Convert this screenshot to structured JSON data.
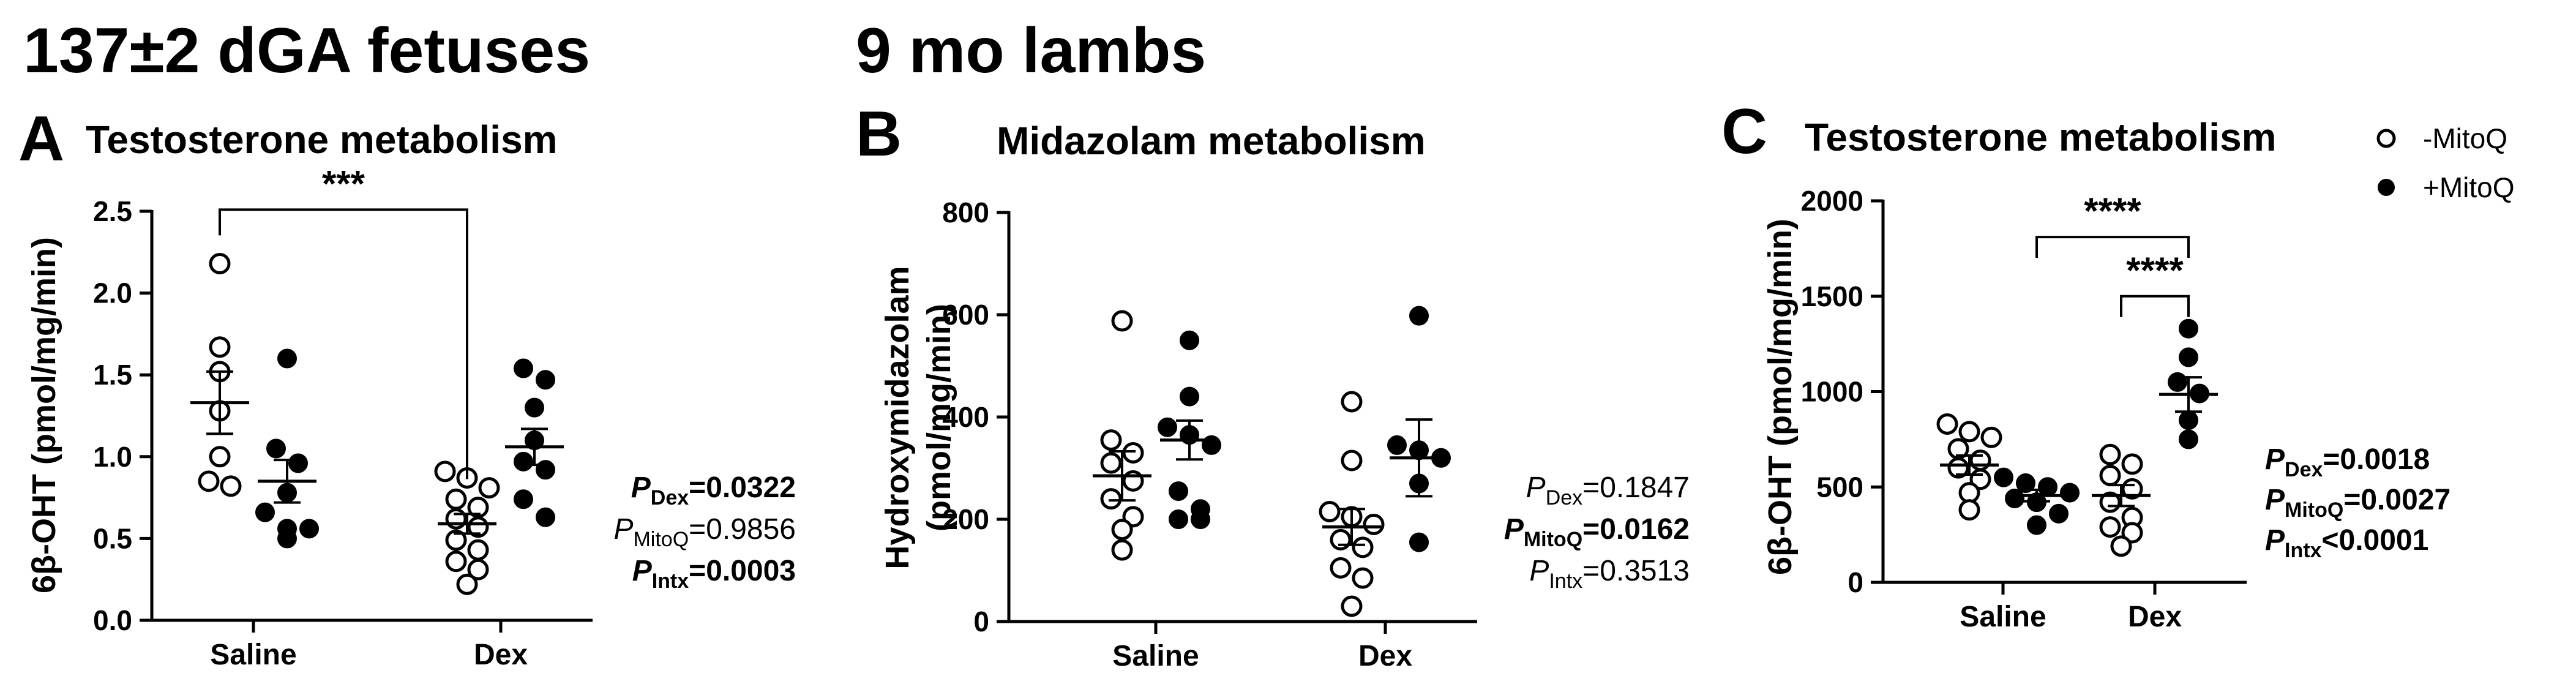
{
  "headers": {
    "fetal": "137±2 dGA fetuses",
    "lambs": "9 mo lambs"
  },
  "legend": {
    "open_label": "-MitoQ",
    "filled_label": "+MitoQ"
  },
  "chart_data": [
    {
      "type": "scatter",
      "panel": "A",
      "title": "Testosterone metabolism",
      "ylabel": "6β-OHT (pmol/mg/min)",
      "ylim": [
        0,
        2.5
      ],
      "yticks": [
        "0.0",
        "0.5",
        "1.0",
        "1.5",
        "2.0",
        "2.5"
      ],
      "ytick_values": [
        0,
        0.5,
        1.0,
        1.5,
        2.0,
        2.5
      ],
      "categories": [
        "Saline",
        "Dex"
      ],
      "series": [
        {
          "name": "-MitoQ",
          "category": "Saline",
          "values": [
            2.18,
            1.67,
            1.52,
            1.28,
            1.0,
            0.85,
            0.82
          ],
          "mean": 1.33,
          "sem": 0.19
        },
        {
          "name": "+MitoQ",
          "category": "Saline",
          "values": [
            1.6,
            1.05,
            0.96,
            0.78,
            0.66,
            0.56,
            0.56,
            0.5
          ],
          "mean": 0.85,
          "sem": 0.13
        },
        {
          "name": "-MitoQ",
          "category": "Dex",
          "values": [
            0.91,
            0.87,
            0.81,
            0.74,
            0.69,
            0.62,
            0.57,
            0.49,
            0.43,
            0.36,
            0.31,
            0.22
          ],
          "mean": 0.59,
          "sem": 0.06
        },
        {
          "name": "+MitoQ",
          "category": "Dex",
          "values": [
            1.54,
            1.47,
            1.3,
            1.1,
            0.97,
            0.92,
            0.74,
            0.63
          ],
          "mean": 1.06,
          "sem": 0.11
        }
      ],
      "brackets": [
        {
          "label": "***",
          "value": 2.51
        }
      ],
      "stats": [
        {
          "p": "P",
          "sub": "Dex",
          "val": "=0.0322",
          "bold": true
        },
        {
          "p": "P",
          "sub": "MitoQ",
          "val": "=0.9856",
          "bold": false
        },
        {
          "p": "P",
          "sub": "Intx",
          "val": "=0.0003",
          "bold": true
        }
      ]
    },
    {
      "type": "scatter",
      "panel": "B",
      "title": "Midazolam metabolism",
      "ylabel_lines": [
        "Hydroxymidazolam",
        "(pmol/mg/min)"
      ],
      "ylim": [
        0,
        800
      ],
      "yticks": [
        "0",
        "200",
        "400",
        "600",
        "800"
      ],
      "ytick_values": [
        0,
        200,
        400,
        600,
        800
      ],
      "categories": [
        "Saline",
        "Dex"
      ],
      "series": [
        {
          "name": "-MitoQ",
          "category": "Saline",
          "values": [
            588,
            355,
            330,
            310,
            275,
            240,
            205,
            180,
            140
          ],
          "mean": 285,
          "sem": 48
        },
        {
          "name": "+MitoQ",
          "category": "Saline",
          "values": [
            550,
            440,
            380,
            365,
            345,
            255,
            220,
            200,
            200
          ],
          "mean": 355,
          "sem": 38
        },
        {
          "name": "-MitoQ",
          "category": "Dex",
          "values": [
            430,
            315,
            215,
            205,
            190,
            160,
            145,
            105,
            85,
            30
          ],
          "mean": 185,
          "sem": 35
        },
        {
          "name": "+MitoQ",
          "category": "Dex",
          "values": [
            598,
            345,
            335,
            320,
            270,
            155
          ],
          "mean": 320,
          "sem": 75
        }
      ],
      "stats": [
        {
          "p": "P",
          "sub": "Dex",
          "val": "=0.1847",
          "bold": false
        },
        {
          "p": "P",
          "sub": "MitoQ",
          "val": "=0.0162",
          "bold": true
        },
        {
          "p": "P",
          "sub": "Intx",
          "val": "=0.3513",
          "bold": false
        }
      ]
    },
    {
      "type": "scatter",
      "panel": "C",
      "title": "Testosterone metabolism",
      "ylabel": "6β-OHT (pmol/mg/min)",
      "ylim": [
        0,
        2000
      ],
      "yticks": [
        "0",
        "500",
        "1000",
        "1500",
        "2000"
      ],
      "ytick_values": [
        0,
        500,
        1000,
        1500,
        2000
      ],
      "categories": [
        "Saline",
        "Dex"
      ],
      "series": [
        {
          "name": "-MitoQ",
          "category": "Saline",
          "values": [
            830,
            790,
            760,
            700,
            640,
            600,
            540,
            470,
            380
          ],
          "mean": 615,
          "sem": 50
        },
        {
          "name": "+MitoQ",
          "category": "Saline",
          "values": [
            550,
            520,
            500,
            470,
            440,
            420,
            360,
            300
          ],
          "mean": 455,
          "sem": 30
        },
        {
          "name": "-MitoQ",
          "category": "Dex",
          "values": [
            670,
            620,
            560,
            490,
            420,
            340,
            290,
            260,
            190
          ],
          "mean": 455,
          "sem": 55
        },
        {
          "name": "+MitoQ",
          "category": "Dex",
          "values": [
            1330,
            1180,
            1050,
            990,
            850,
            750
          ],
          "mean": 985,
          "sem": 90
        }
      ],
      "brackets": [
        {
          "label": "****",
          "value": 1810
        },
        {
          "label": "****",
          "value": 1500
        }
      ],
      "stats": [
        {
          "p": "P",
          "sub": "Dex",
          "val": "=0.0018",
          "bold": true
        },
        {
          "p": "P",
          "sub": "MitoQ",
          "val": "=0.0027",
          "bold": true
        },
        {
          "p": "P",
          "sub": "Intx",
          "val": "<0.0001",
          "bold": true
        }
      ]
    }
  ]
}
